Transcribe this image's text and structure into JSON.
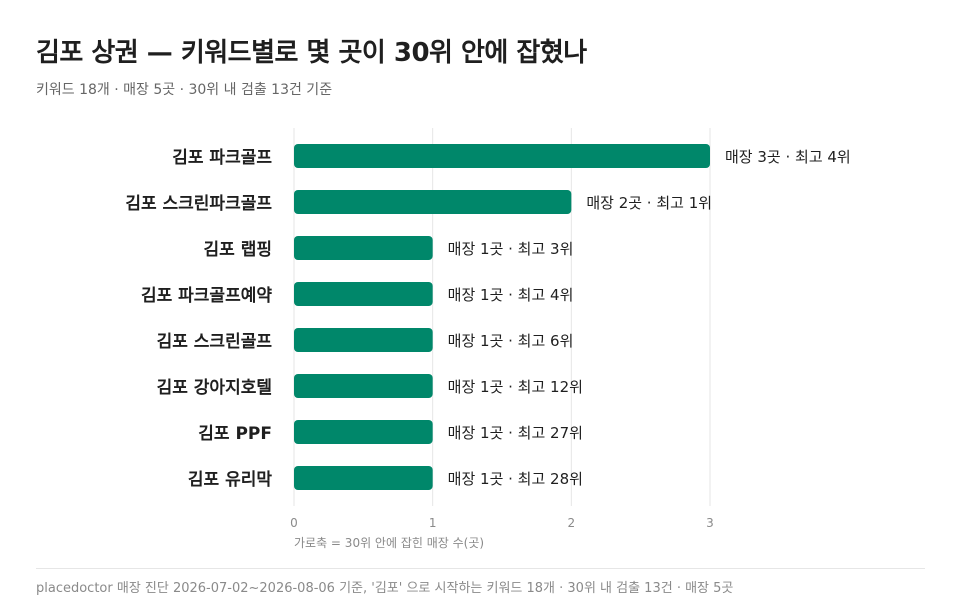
{
  "header": {
    "title": "김포 상권 — 키워드별로 몇 곳이 30위 안에 잡혔나",
    "subtitle": "키워드 18개 · 매장 5곳 · 30위 내 검출 13건 기준"
  },
  "footer": {
    "note": "placedoctor 매장 진단 2026-07-02~2026-08-06 기준, '김포' 으로 시작하는 키워드 18개 · 30위 내 검출 13건 · 매장 5곳"
  },
  "colors": {
    "bar": "#00876a",
    "grid": "#e6e6e6",
    "axis_text": "#8a8a8a"
  },
  "chart_data": {
    "type": "bar",
    "orientation": "horizontal",
    "title": "",
    "xlabel": "가로축 = 30위 안에 잡힌 매장 수(곳)",
    "ylabel": "",
    "xlim": [
      0,
      3
    ],
    "xticks": [
      0,
      1,
      2,
      3
    ],
    "grid": true,
    "categories": [
      "김포 파크골프",
      "김포 스크린파크골프",
      "김포 랩핑",
      "김포 파크골프예약",
      "김포 스크린골프",
      "김포 강아지호텔",
      "김포 PPF",
      "김포 유리막"
    ],
    "values": [
      3,
      2,
      1,
      1,
      1,
      1,
      1,
      1
    ],
    "best_rank": [
      4,
      1,
      3,
      4,
      6,
      12,
      27,
      28
    ],
    "data_labels": [
      "매장 3곳 · 최고 4위",
      "매장 2곳 · 최고 1위",
      "매장 1곳 · 최고 3위",
      "매장 1곳 · 최고 4위",
      "매장 1곳 · 최고 6위",
      "매장 1곳 · 최고 12위",
      "매장 1곳 · 최고 27위",
      "매장 1곳 · 최고 28위"
    ]
  }
}
